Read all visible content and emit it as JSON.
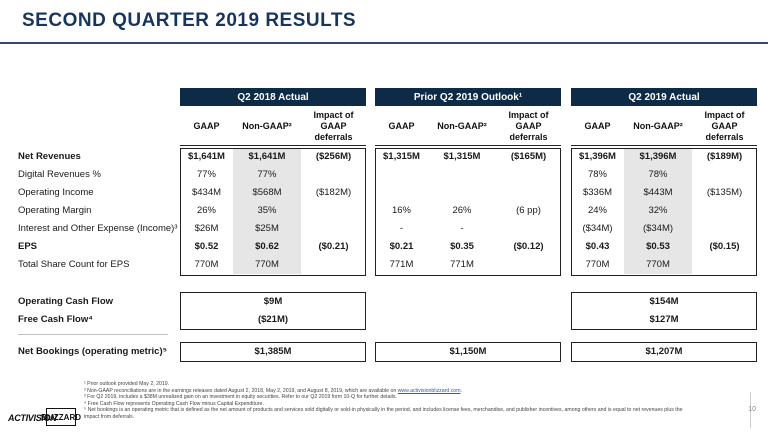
{
  "title": "SECOND QUARTER 2019 RESULTS",
  "groups": [
    "Q2 2018 Actual",
    "Prior Q2 2019 Outlook¹",
    "Q2 2019 Actual"
  ],
  "col_headers": [
    "GAAP",
    "Non-GAAP²",
    "Impact of GAAP deferrals"
  ],
  "rows": [
    {
      "label": "Net Revenues",
      "bold": true,
      "v": [
        "$1,641M",
        "$1,641M",
        "($256M)",
        "$1,315M",
        "$1,315M",
        "($165M)",
        "$1,396M",
        "$1,396M",
        "($189M)"
      ]
    },
    {
      "label": "Digital Revenues %",
      "bold": false,
      "v": [
        "77%",
        "77%",
        "",
        "",
        "",
        "",
        "78%",
        "78%",
        ""
      ]
    },
    {
      "label": "Operating Income",
      "bold": false,
      "v": [
        "$434M",
        "$568M",
        "($182M)",
        "",
        "",
        "",
        "$336M",
        "$443M",
        "($135M)"
      ]
    },
    {
      "label": "Operating Margin",
      "bold": false,
      "v": [
        "26%",
        "35%",
        "",
        "16%",
        "26%",
        "(6 pp)",
        "24%",
        "32%",
        ""
      ]
    },
    {
      "label": "Interest and Other Expense (Income)³",
      "bold": false,
      "v": [
        "$26M",
        "$25M",
        "",
        "-",
        "-",
        "",
        "($34M)",
        "($34M)",
        ""
      ]
    },
    {
      "label": "EPS",
      "bold": true,
      "v": [
        "$0.52",
        "$0.62",
        "($0.21)",
        "$0.21",
        "$0.35",
        "($0.12)",
        "$0.43",
        "$0.53",
        "($0.15)"
      ]
    },
    {
      "label": "Total Share Count for EPS",
      "bold": false,
      "v": [
        "770M",
        "770M",
        "",
        "771M",
        "771M",
        "",
        "770M",
        "770M",
        ""
      ]
    }
  ],
  "cash_rows": [
    {
      "label": "Operating Cash Flow",
      "v": [
        "$9M",
        "",
        "$154M"
      ]
    },
    {
      "label": "Free Cash Flow⁴",
      "v": [
        "($21M)",
        "",
        "$127M"
      ]
    }
  ],
  "bookings": {
    "label": "Net Bookings (operating metric)⁵",
    "v": [
      "$1,385M",
      "$1,150M",
      "$1,207M"
    ]
  },
  "footnotes": {
    "n1": "¹ Prior outlook provided May 2, 2019.",
    "n2a": "² Non-GAAP reconciliations are in the earnings releases dated August 2, 2018, May 2, 2019, and August 8, 2019, which are available on ",
    "n2link": "www.activisionblizzard.com",
    "n2b": ".",
    "n3": "³ For Q2 2019, includes a $38M unrealized gain on an investment in equity securities. Refer to our Q2 2019 form 10-Q for further details.",
    "n4": "⁴ Free Cash Flow represents Operating Cash Flow minus Capital Expenditure.",
    "n5": "⁵ Net bookings is an operating metric that is defined as the net amount of products and services sold digitally or sold-in physically in the period, and includes license fees, merchandise, and publisher incentives, among others and is equal to net revenues plus the impact from deferrals."
  },
  "page_number": "10",
  "logos": {
    "activision": "ACTIVISION",
    "blizzard": "BLIZZARD"
  },
  "colors": {
    "title": "#17365d",
    "header_bg": "#0d2a47",
    "shade": "#e6e6e6"
  }
}
